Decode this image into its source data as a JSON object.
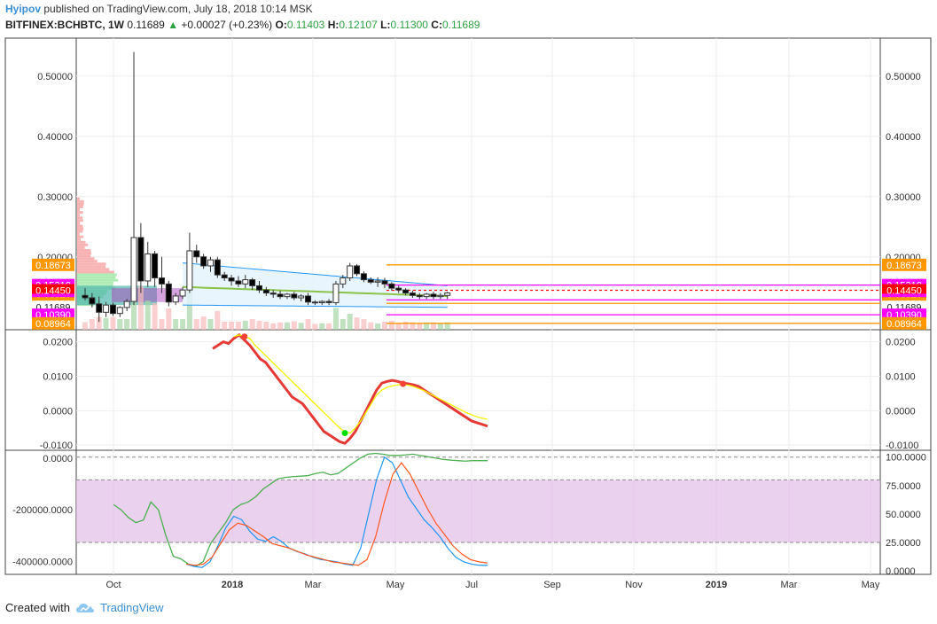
{
  "header": {
    "author": "Hyipov",
    "published_text": "published on TradingView.com, July 18, 2018 10:14 MSK",
    "symbol": "BITFINEX:BCHBTC, 1W",
    "last": "0.11689",
    "change": "+0.00027 (+0.23%)",
    "o_label": "O:",
    "o": "0.11403",
    "h_label": "H:",
    "h": "0.12107",
    "l_label": "L:",
    "l": "0.11300",
    "c_label": "C:",
    "c": "0.11689"
  },
  "footer": {
    "created_with": "Created with",
    "brand": "TradingView",
    "brand_icon": "tradingview-cloud-icon"
  },
  "colors": {
    "up": "#2ea043",
    "down": "#000000",
    "orange": "#ff9800",
    "magenta": "#ff00ff",
    "red": "#ff0000",
    "band": "#2196f3",
    "purple_zone": "#e1bee7"
  },
  "chart_data": [
    {
      "type": "candlestick",
      "panel": "price",
      "x_ticks": [
        "Oct",
        "2018",
        "Mar",
        "May",
        "Jul",
        "Sep",
        "Nov",
        "2019",
        "Mar",
        "May"
      ],
      "y_ticks": [
        0.5,
        0.4,
        0.3,
        0.2
      ],
      "y_tick_labels": [
        "0.50000",
        "0.40000",
        "0.30000",
        "0.20000"
      ],
      "ylim": [
        0.082,
        0.56
      ],
      "candles": [
        [
          0.136,
          0.148,
          0.128,
          0.132
        ],
        [
          0.132,
          0.14,
          0.116,
          0.122
        ],
        [
          0.122,
          0.134,
          0.092,
          0.108
        ],
        [
          0.108,
          0.125,
          0.1,
          0.12
        ],
        [
          0.12,
          0.124,
          0.102,
          0.106
        ],
        [
          0.106,
          0.118,
          0.1,
          0.116
        ],
        [
          0.116,
          0.13,
          0.11,
          0.126
        ],
        [
          0.126,
          0.54,
          0.12,
          0.232
        ],
        [
          0.232,
          0.256,
          0.14,
          0.16
        ],
        [
          0.16,
          0.225,
          0.15,
          0.205
        ],
        [
          0.205,
          0.21,
          0.15,
          0.165
        ],
        [
          0.165,
          0.2,
          0.14,
          0.155
        ],
        [
          0.155,
          0.16,
          0.118,
          0.125
        ],
        [
          0.125,
          0.14,
          0.12,
          0.135
        ],
        [
          0.135,
          0.15,
          0.13,
          0.145
        ],
        [
          0.145,
          0.24,
          0.14,
          0.21
        ],
        [
          0.21,
          0.22,
          0.19,
          0.2
        ],
        [
          0.2,
          0.205,
          0.18,
          0.185
        ],
        [
          0.185,
          0.2,
          0.175,
          0.195
        ],
        [
          0.195,
          0.2,
          0.165,
          0.17
        ],
        [
          0.17,
          0.175,
          0.16,
          0.165
        ],
        [
          0.165,
          0.17,
          0.152,
          0.16
        ],
        [
          0.16,
          0.168,
          0.15,
          0.155
        ],
        [
          0.155,
          0.17,
          0.148,
          0.162
        ],
        [
          0.162,
          0.165,
          0.145,
          0.152
        ],
        [
          0.152,
          0.16,
          0.14,
          0.145
        ],
        [
          0.145,
          0.15,
          0.135,
          0.14
        ],
        [
          0.14,
          0.145,
          0.132,
          0.138
        ],
        [
          0.138,
          0.144,
          0.13,
          0.134
        ],
        [
          0.134,
          0.14,
          0.13,
          0.138
        ],
        [
          0.138,
          0.142,
          0.128,
          0.132
        ],
        [
          0.132,
          0.138,
          0.126,
          0.135
        ],
        [
          0.135,
          0.14,
          0.12,
          0.125
        ],
        [
          0.125,
          0.128,
          0.12,
          0.124
        ],
        [
          0.124,
          0.128,
          0.12,
          0.126
        ],
        [
          0.126,
          0.13,
          0.12,
          0.124
        ],
        [
          0.124,
          0.16,
          0.12,
          0.155
        ],
        [
          0.155,
          0.17,
          0.148,
          0.165
        ],
        [
          0.165,
          0.19,
          0.16,
          0.185
        ],
        [
          0.185,
          0.188,
          0.168,
          0.172
        ],
        [
          0.172,
          0.176,
          0.158,
          0.162
        ],
        [
          0.162,
          0.166,
          0.155,
          0.158
        ],
        [
          0.158,
          0.166,
          0.15,
          0.16
        ],
        [
          0.16,
          0.165,
          0.148,
          0.155
        ],
        [
          0.155,
          0.158,
          0.144,
          0.148
        ],
        [
          0.148,
          0.152,
          0.14,
          0.145
        ],
        [
          0.145,
          0.148,
          0.136,
          0.14
        ],
        [
          0.14,
          0.144,
          0.132,
          0.136
        ],
        [
          0.136,
          0.14,
          0.13,
          0.134
        ],
        [
          0.134,
          0.14,
          0.13,
          0.138
        ],
        [
          0.138,
          0.142,
          0.13,
          0.134
        ],
        [
          0.134,
          0.14,
          0.13,
          0.136
        ],
        [
          0.136,
          0.142,
          0.13,
          0.14
        ]
      ],
      "horizontal_levels": [
        {
          "value": 0.18673,
          "label": "0.18673",
          "color": "#ff9800"
        },
        {
          "value": 0.1531,
          "label": "0.15310",
          "color": "#ff00ff"
        },
        {
          "value": 0.1445,
          "label": "0.14450",
          "color": "#ff0000"
        },
        {
          "value": 0.1285,
          "label": "0.12850",
          "color": "#ff00ff"
        },
        {
          "value": 0.1228,
          "label": "0.12280",
          "color": "#ff9800"
        },
        {
          "value": 0.11689,
          "label": "0.11689",
          "color": "#ffffff"
        },
        {
          "value": 0.1039,
          "label": "0.10390",
          "color": "#ff00ff"
        },
        {
          "value": 0.08964,
          "label": "0.08964",
          "color": "#ff9800"
        }
      ]
    },
    {
      "type": "line",
      "panel": "oscillator",
      "y_ticks": [
        0.02,
        0.01,
        0.0,
        -0.01
      ],
      "y_tick_labels": [
        "0.0200",
        "0.0100",
        "0.0000",
        "-0.0100"
      ],
      "ylim": [
        -0.0115,
        0.0235
      ],
      "series": [
        {
          "color": "#e53935",
          "values": [
            0.018,
            0.019,
            0.02,
            0.0195,
            0.021,
            0.022,
            0.0205,
            0.019,
            0.017,
            0.015,
            0.014,
            0.012,
            0.01,
            0.008,
            0.006,
            0.004,
            0.003,
            0.002,
            0.0,
            -0.002,
            -0.004,
            -0.006,
            -0.007,
            -0.008,
            -0.009,
            -0.0095,
            -0.008,
            -0.006,
            -0.003,
            0.0,
            0.003,
            0.006,
            0.008,
            0.0085,
            0.0088,
            0.0085,
            0.008,
            0.0078,
            0.0075,
            0.007,
            0.006,
            0.005,
            0.004,
            0.003,
            0.002,
            0.001,
            0.0,
            -0.001,
            -0.002,
            -0.003,
            -0.0035,
            -0.004,
            -0.0045
          ]
        },
        {
          "color": "#f5f500",
          "values": [
            null,
            null,
            null,
            null,
            0.0215,
            0.022,
            0.0215,
            0.021,
            0.019,
            0.0175,
            0.016,
            0.0145,
            0.013,
            0.0115,
            0.01,
            0.0085,
            0.007,
            0.0055,
            0.004,
            0.0025,
            0.001,
            -0.0005,
            -0.002,
            -0.0035,
            -0.005,
            -0.0062,
            -0.0065,
            -0.005,
            -0.003,
            -0.0005,
            0.002,
            0.0045,
            0.006,
            0.0068,
            0.0072,
            0.0075,
            0.0076,
            0.0074,
            0.007,
            0.0064,
            0.0058,
            0.005,
            0.0042,
            0.0034,
            0.0026,
            0.0018,
            0.001,
            0.0002,
            -0.0006,
            -0.0012,
            -0.0018,
            -0.0022,
            -0.0025
          ]
        }
      ]
    },
    {
      "type": "line",
      "panel": "lower",
      "y_ticks_left": [
        0,
        -200000,
        -400000
      ],
      "y_tick_labels_left": [
        "0.0000",
        "-200000.0000",
        "-400000.0000"
      ],
      "ylim_left": [
        -450000,
        30000
      ],
      "y_ticks_right": [
        100,
        75,
        50,
        25,
        0
      ],
      "y_tick_labels_right": [
        "100.0000",
        "75.0000",
        "50.0000",
        "25.0000",
        "0.0000"
      ],
      "ylim_right": [
        -3,
        106
      ],
      "zone": [
        25,
        80
      ],
      "series": [
        {
          "color": "#4caf50",
          "axis": "left",
          "values": [
            -180000,
            -200000,
            -230000,
            -250000,
            -240000,
            -170000,
            -200000,
            -300000,
            -380000,
            -390000,
            -410000,
            -420000,
            -400000,
            -330000,
            -290000,
            -250000,
            -200000,
            -180000,
            -170000,
            -150000,
            -120000,
            -100000,
            -80000,
            -75000,
            -72000,
            -70000,
            -68000,
            -60000,
            -55000,
            -65000,
            -60000,
            -40000,
            -20000,
            0,
            15000,
            18000,
            15000,
            10000,
            10000,
            12000,
            15000,
            10000,
            5000,
            0,
            -5000,
            -8000,
            -10000,
            -12000,
            -10000,
            -10000,
            -10000
          ]
        },
        {
          "color": "#2196f3",
          "axis": "right",
          "values": [
            6,
            4,
            3,
            8,
            22,
            38,
            48,
            45,
            35,
            28,
            26,
            30,
            26,
            20,
            17,
            15,
            12,
            10,
            9,
            8,
            6,
            5,
            20,
            50,
            80,
            100,
            95,
            80,
            65,
            55,
            45,
            38,
            30,
            20,
            12,
            8,
            6,
            5,
            5
          ]
        },
        {
          "color": "#ff5722",
          "axis": "right",
          "values": [
            6,
            5,
            6,
            12,
            24,
            36,
            42,
            40,
            35,
            30,
            24,
            22,
            20,
            17,
            14,
            12,
            10,
            8,
            7,
            6,
            5,
            10,
            30,
            60,
            85,
            95,
            85,
            70,
            55,
            42,
            32,
            22,
            15,
            10,
            8,
            7
          ]
        }
      ]
    }
  ]
}
